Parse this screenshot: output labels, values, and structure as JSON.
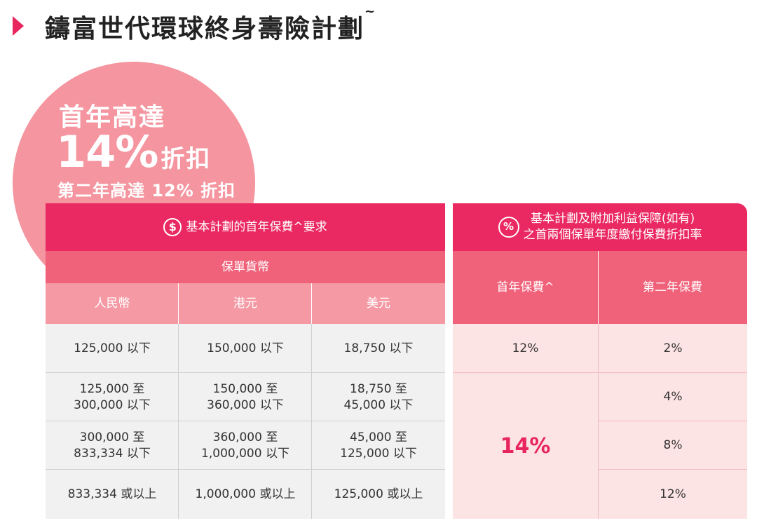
{
  "title": "鑄富世代環球終身壽險計劃",
  "title_mark": "~",
  "badge": {
    "line1": "首年高達",
    "line2_big": "14%",
    "line2_small": "折扣",
    "line3": "第二年高達 12% 折扣"
  },
  "left_table": {
    "header": "基本計劃的首年保費^要求",
    "header_icon": "$",
    "currency_header": "保單貨幣",
    "columns": [
      "人民幣",
      "港元",
      "美元"
    ],
    "rows": [
      [
        "125,000 以下",
        "150,000 以下",
        "18,750 以下"
      ],
      [
        [
          "125,000 至",
          "300,000 以下"
        ],
        [
          "150,000 至",
          "360,000 以下"
        ],
        [
          "18,750 至",
          "45,000 以下"
        ]
      ],
      [
        [
          "300,000 至",
          "833,334 以下"
        ],
        [
          "360,000 至",
          "1,000,000 以下"
        ],
        [
          "45,000 至",
          "125,000 以下"
        ]
      ],
      [
        "833,334 或以上",
        "1,000,000 或以上",
        "125,000 或以上"
      ]
    ]
  },
  "right_table": {
    "header_line1": "基本計劃及附加利益保障(如有)",
    "header_line2": "之首兩個保單年度繳付保費折扣率",
    "header_icon": "%",
    "col1": "首年保費^",
    "col2": "第二年保費",
    "first_year": [
      "12%",
      "14%"
    ],
    "second_year": [
      "2%",
      "4%",
      "8%",
      "12%"
    ]
  },
  "colors": {
    "accent": "#e8265e",
    "mid": "#f0617a",
    "light": "#f59aa5",
    "circle": "#f4959f",
    "pink_body": "#fde4e4"
  }
}
